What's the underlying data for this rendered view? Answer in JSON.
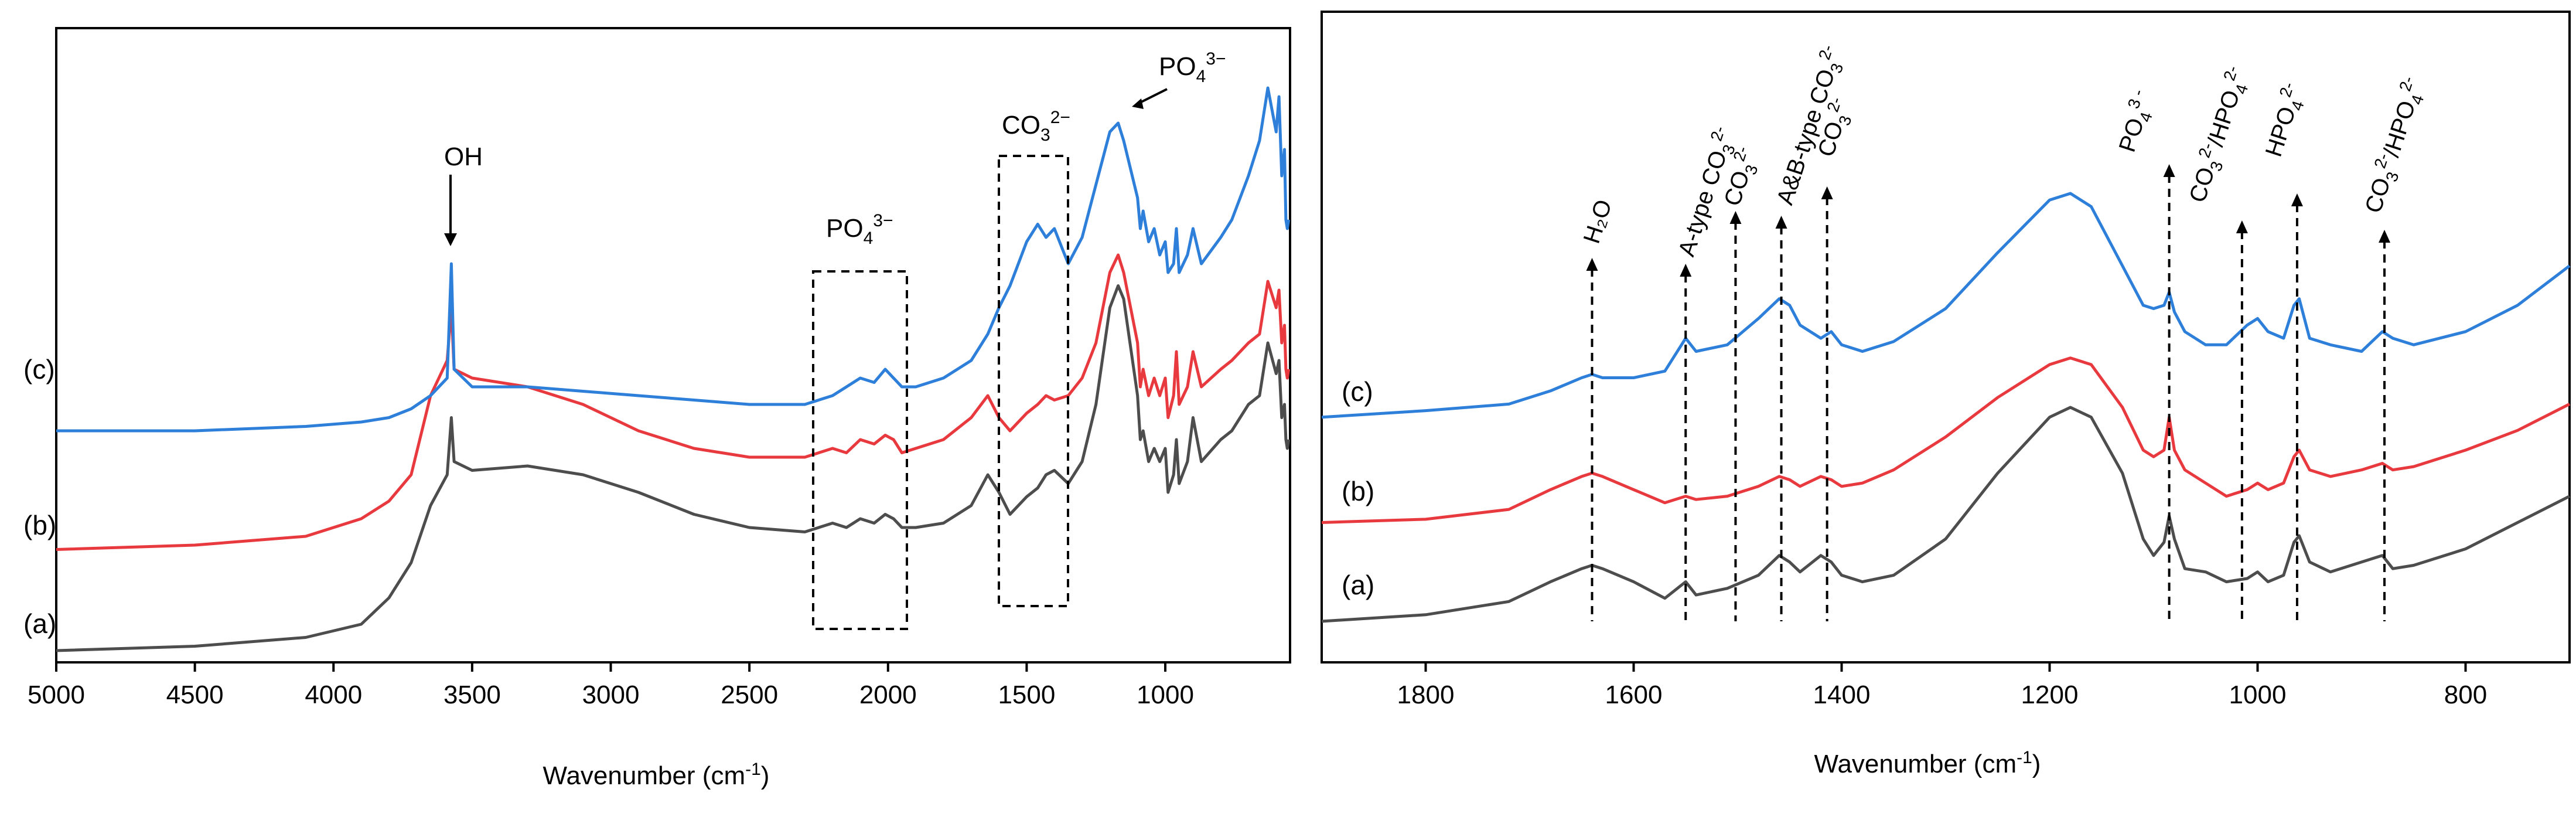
{
  "colors": {
    "a": "#4d4d4d",
    "b": "#e8393f",
    "c": "#2d7fd9"
  },
  "chart_data": [
    {
      "type": "line",
      "title": "",
      "xlabel": "Wavenumber (cm",
      "xlabel_sup": "-1",
      "xlabel_end": ")",
      "xlim": [
        5000,
        550
      ],
      "x_reversed": true,
      "xticks": [
        5000,
        4500,
        4000,
        3500,
        3000,
        2500,
        2000,
        1500,
        1000
      ],
      "series": [
        {
          "name": "(a)",
          "color_key": "a",
          "x": [
            5000,
            4500,
            4100,
            3900,
            3800,
            3720,
            3650,
            3590,
            3575,
            3565,
            3500,
            3300,
            3100,
            2900,
            2700,
            2500,
            2300,
            2200,
            2150,
            2100,
            2050,
            2010,
            1980,
            1950,
            1900,
            1800,
            1700,
            1640,
            1600,
            1560,
            1500,
            1460,
            1430,
            1400,
            1350,
            1300,
            1250,
            1200,
            1170,
            1150,
            1100,
            1090,
            1080,
            1060,
            1040,
            1020,
            1000,
            990,
            970,
            960,
            950,
            920,
            900,
            870,
            800,
            760,
            730,
            700,
            660,
            630,
            600,
            590,
            580,
            570,
            565,
            560,
            555
          ],
          "y": [
            0.02,
            0.03,
            0.05,
            0.08,
            0.14,
            0.22,
            0.35,
            0.42,
            0.55,
            0.45,
            0.43,
            0.44,
            0.42,
            0.38,
            0.33,
            0.3,
            0.29,
            0.31,
            0.3,
            0.32,
            0.31,
            0.33,
            0.32,
            0.3,
            0.3,
            0.31,
            0.35,
            0.42,
            0.38,
            0.33,
            0.37,
            0.39,
            0.42,
            0.43,
            0.4,
            0.45,
            0.58,
            0.8,
            0.85,
            0.82,
            0.6,
            0.5,
            0.52,
            0.45,
            0.48,
            0.45,
            0.48,
            0.38,
            0.42,
            0.5,
            0.4,
            0.45,
            0.55,
            0.45,
            0.5,
            0.52,
            0.55,
            0.58,
            0.6,
            0.72,
            0.65,
            0.68,
            0.55,
            0.58,
            0.5,
            0.48,
            0.5
          ]
        },
        {
          "name": "(b)",
          "color_key": "b",
          "x": [
            5000,
            4500,
            4100,
            3900,
            3800,
            3720,
            3650,
            3590,
            3575,
            3565,
            3500,
            3300,
            3100,
            2900,
            2700,
            2500,
            2300,
            2200,
            2150,
            2100,
            2050,
            2010,
            1980,
            1950,
            1900,
            1800,
            1700,
            1640,
            1600,
            1560,
            1500,
            1460,
            1430,
            1400,
            1350,
            1300,
            1250,
            1200,
            1170,
            1150,
            1100,
            1090,
            1080,
            1060,
            1040,
            1020,
            1000,
            990,
            970,
            960,
            950,
            920,
            900,
            870,
            800,
            760,
            730,
            700,
            660,
            630,
            600,
            590,
            580,
            570,
            565,
            560,
            555
          ],
          "y": [
            0.25,
            0.26,
            0.28,
            0.32,
            0.36,
            0.42,
            0.6,
            0.68,
            0.8,
            0.66,
            0.64,
            0.62,
            0.58,
            0.52,
            0.48,
            0.46,
            0.46,
            0.48,
            0.47,
            0.5,
            0.49,
            0.51,
            0.5,
            0.47,
            0.48,
            0.5,
            0.55,
            0.6,
            0.55,
            0.52,
            0.56,
            0.58,
            0.6,
            0.59,
            0.6,
            0.64,
            0.72,
            0.88,
            0.92,
            0.88,
            0.72,
            0.62,
            0.66,
            0.6,
            0.64,
            0.6,
            0.64,
            0.55,
            0.6,
            0.7,
            0.58,
            0.62,
            0.7,
            0.62,
            0.66,
            0.68,
            0.7,
            0.72,
            0.74,
            0.86,
            0.8,
            0.84,
            0.72,
            0.76,
            0.66,
            0.64,
            0.66
          ]
        },
        {
          "name": "(c)",
          "color_key": "c",
          "x": [
            5000,
            4500,
            4100,
            3900,
            3800,
            3720,
            3650,
            3590,
            3575,
            3565,
            3500,
            3300,
            3100,
            2900,
            2700,
            2500,
            2300,
            2200,
            2150,
            2100,
            2050,
            2010,
            1980,
            1950,
            1900,
            1800,
            1700,
            1640,
            1600,
            1560,
            1500,
            1460,
            1430,
            1400,
            1350,
            1300,
            1250,
            1200,
            1170,
            1150,
            1100,
            1090,
            1080,
            1060,
            1040,
            1020,
            1000,
            990,
            970,
            960,
            950,
            920,
            900,
            870,
            800,
            760,
            730,
            700,
            660,
            630,
            600,
            590,
            580,
            570,
            565,
            560,
            555
          ],
          "y": [
            0.52,
            0.52,
            0.53,
            0.54,
            0.55,
            0.57,
            0.6,
            0.64,
            0.9,
            0.66,
            0.62,
            0.62,
            0.61,
            0.6,
            0.59,
            0.58,
            0.58,
            0.6,
            0.62,
            0.64,
            0.63,
            0.66,
            0.64,
            0.62,
            0.62,
            0.64,
            0.68,
            0.74,
            0.8,
            0.85,
            0.95,
            0.99,
            0.96,
            0.98,
            0.9,
            0.96,
            1.08,
            1.2,
            1.22,
            1.18,
            1.05,
            0.98,
            1.02,
            0.95,
            0.98,
            0.92,
            0.95,
            0.88,
            0.9,
            0.98,
            0.88,
            0.92,
            0.98,
            0.9,
            0.96,
            1.0,
            1.05,
            1.1,
            1.18,
            1.3,
            1.2,
            1.28,
            1.1,
            1.16,
            1.0,
            0.98,
            1.0
          ]
        }
      ],
      "curve_labels": [
        "(a)",
        "(b)",
        "(c)"
      ],
      "annotations": {
        "oh": "OH",
        "po4_mid_base": "PO",
        "po4_mid_sub": "4",
        "po4_mid_sup": "3−",
        "co3_base": "CO",
        "co3_sub": "3",
        "co3_sup": "2−",
        "po4_top_base": "PO",
        "po4_top_sub": "4",
        "po4_top_sup": "3−"
      }
    },
    {
      "type": "line",
      "title": "",
      "xlabel": "Wavenumber (cm",
      "xlabel_sup": "-1",
      "xlabel_end": ")",
      "xlim": [
        1900,
        700
      ],
      "x_reversed": true,
      "xticks": [
        1800,
        1600,
        1400,
        1200,
        1000,
        800
      ],
      "series": [
        {
          "name": "(a)",
          "color_key": "a",
          "x": [
            1900,
            1800,
            1720,
            1680,
            1650,
            1640,
            1630,
            1600,
            1570,
            1550,
            1540,
            1510,
            1480,
            1460,
            1450,
            1440,
            1420,
            1410,
            1400,
            1380,
            1350,
            1300,
            1250,
            1200,
            1180,
            1160,
            1130,
            1110,
            1100,
            1090,
            1085,
            1080,
            1070,
            1050,
            1030,
            1010,
            1000,
            990,
            975,
            965,
            960,
            950,
            930,
            900,
            880,
            870,
            850,
            800,
            750,
            700
          ],
          "y": [
            0.1,
            0.12,
            0.16,
            0.22,
            0.26,
            0.27,
            0.26,
            0.22,
            0.17,
            0.22,
            0.18,
            0.2,
            0.24,
            0.3,
            0.28,
            0.25,
            0.3,
            0.28,
            0.24,
            0.22,
            0.24,
            0.35,
            0.55,
            0.72,
            0.75,
            0.72,
            0.55,
            0.35,
            0.3,
            0.34,
            0.42,
            0.35,
            0.26,
            0.25,
            0.22,
            0.23,
            0.25,
            0.22,
            0.24,
            0.34,
            0.36,
            0.28,
            0.25,
            0.28,
            0.3,
            0.26,
            0.27,
            0.32,
            0.4,
            0.48
          ]
        },
        {
          "name": "(b)",
          "color_key": "b",
          "x": [
            1900,
            1800,
            1720,
            1680,
            1650,
            1640,
            1630,
            1600,
            1570,
            1550,
            1540,
            1510,
            1480,
            1460,
            1450,
            1440,
            1420,
            1410,
            1400,
            1380,
            1350,
            1300,
            1250,
            1200,
            1180,
            1160,
            1130,
            1110,
            1100,
            1090,
            1085,
            1080,
            1070,
            1050,
            1030,
            1010,
            1000,
            990,
            975,
            965,
            960,
            950,
            930,
            900,
            880,
            870,
            850,
            800,
            750,
            700
          ],
          "y": [
            0.4,
            0.41,
            0.44,
            0.5,
            0.54,
            0.55,
            0.54,
            0.5,
            0.46,
            0.48,
            0.47,
            0.48,
            0.51,
            0.54,
            0.53,
            0.51,
            0.54,
            0.53,
            0.51,
            0.52,
            0.56,
            0.66,
            0.78,
            0.88,
            0.9,
            0.88,
            0.75,
            0.62,
            0.6,
            0.62,
            0.72,
            0.62,
            0.56,
            0.52,
            0.48,
            0.5,
            0.52,
            0.5,
            0.52,
            0.6,
            0.62,
            0.56,
            0.54,
            0.56,
            0.58,
            0.56,
            0.57,
            0.62,
            0.68,
            0.76
          ]
        },
        {
          "name": "(c)",
          "color_key": "c",
          "x": [
            1900,
            1800,
            1720,
            1680,
            1650,
            1640,
            1630,
            1600,
            1570,
            1550,
            1540,
            1510,
            1480,
            1460,
            1450,
            1440,
            1420,
            1410,
            1400,
            1380,
            1350,
            1300,
            1250,
            1200,
            1180,
            1160,
            1130,
            1110,
            1100,
            1090,
            1085,
            1080,
            1070,
            1050,
            1030,
            1010,
            1000,
            990,
            975,
            965,
            960,
            950,
            930,
            900,
            880,
            870,
            850,
            800,
            750,
            700
          ],
          "y": [
            0.72,
            0.74,
            0.76,
            0.8,
            0.84,
            0.85,
            0.84,
            0.84,
            0.86,
            0.96,
            0.92,
            0.94,
            1.02,
            1.08,
            1.06,
            1.0,
            0.96,
            0.98,
            0.94,
            0.92,
            0.95,
            1.05,
            1.22,
            1.38,
            1.4,
            1.36,
            1.18,
            1.06,
            1.05,
            1.06,
            1.1,
            1.04,
            0.98,
            0.94,
            0.94,
            1.0,
            1.02,
            0.98,
            0.96,
            1.06,
            1.08,
            0.96,
            0.94,
            0.92,
            0.98,
            0.96,
            0.94,
            0.98,
            1.06,
            1.18
          ]
        }
      ],
      "curve_labels": [
        "(a)",
        "(b)",
        "(c)"
      ],
      "annotations": {
        "h2o": "H₂O",
        "a_type_base": "A-type CO",
        "a_type_sub": "3",
        "a_type_sup": "2-",
        "co3_1600_base": "CO",
        "co3_1600_sub": "3",
        "co3_1600_sup": "2-",
        "ab_type_base": "A&B-type CO",
        "ab_type_sub": "3",
        "ab_type_sup": "2-",
        "co3_1410_base": "CO",
        "co3_1410_sub": "3",
        "co3_1410_sup": "2-",
        "po4_base": "PO",
        "po4_sub": "4",
        "po4_sup": "3 -",
        "co3hpo4_1_a": "CO",
        "co3hpo4_1_asub": "3",
        "co3hpo4_1_asup": "2-",
        "co3hpo4_1_b": "/HPO",
        "co3hpo4_1_bsub": "4",
        "co3hpo4_1_bsup": "2-",
        "hpo4_base": "HPO",
        "hpo4_sub": "4",
        "hpo4_sup": "2-",
        "co3hpo4_2_a": "CO",
        "co3hpo4_2_asub": "3",
        "co3hpo4_2_asup": "2-",
        "co3hpo4_2_b": "/HPO",
        "co3hpo4_2_bsub": "4",
        "co3hpo4_2_bsup": "2-"
      }
    }
  ]
}
